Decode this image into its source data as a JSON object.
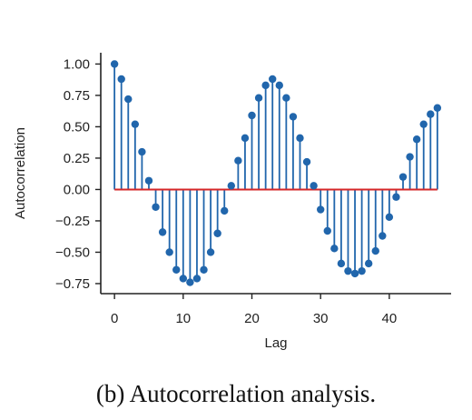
{
  "chart_data": {
    "type": "stem",
    "xlabel": "Lag",
    "ylabel": "Autocorrelation",
    "xlim": [
      -2,
      49
    ],
    "ylim": [
      -0.83,
      1.09
    ],
    "xticks": [
      0,
      10,
      20,
      30,
      40
    ],
    "yticks": [
      1.0,
      0.75,
      0.5,
      0.25,
      0.0,
      -0.25,
      -0.5,
      -0.75
    ],
    "ytick_labels": [
      "1.00",
      "0.75",
      "0.50",
      "0.25",
      "0.00",
      "−0.25",
      "−0.50",
      "−0.75"
    ],
    "xtick_labels": [
      "0",
      "10",
      "20",
      "30",
      "40"
    ],
    "grid": false,
    "baseline": 0,
    "colors": {
      "stem": "#2166ac",
      "baseline": "#d62728",
      "axis": "#222222"
    },
    "x": [
      0,
      1,
      2,
      3,
      4,
      5,
      6,
      7,
      8,
      9,
      10,
      11,
      12,
      13,
      14,
      15,
      16,
      17,
      18,
      19,
      20,
      21,
      22,
      23,
      24,
      25,
      26,
      27,
      28,
      29,
      30,
      31,
      32,
      33,
      34,
      35,
      36,
      37,
      38,
      39,
      40,
      41,
      42,
      43,
      44,
      45,
      46,
      47
    ],
    "values": [
      1.0,
      0.88,
      0.72,
      0.52,
      0.3,
      0.07,
      -0.14,
      -0.34,
      -0.5,
      -0.64,
      -0.71,
      -0.74,
      -0.71,
      -0.64,
      -0.5,
      -0.35,
      -0.17,
      0.03,
      0.23,
      0.41,
      0.59,
      0.73,
      0.83,
      0.88,
      0.83,
      0.73,
      0.58,
      0.41,
      0.22,
      0.03,
      -0.16,
      -0.33,
      -0.47,
      -0.59,
      -0.65,
      -0.67,
      -0.65,
      -0.59,
      -0.49,
      -0.37,
      -0.22,
      -0.06,
      0.1,
      0.26,
      0.4,
      0.52,
      0.6,
      0.65
    ]
  },
  "caption": "(b) Autocorrelation analysis."
}
